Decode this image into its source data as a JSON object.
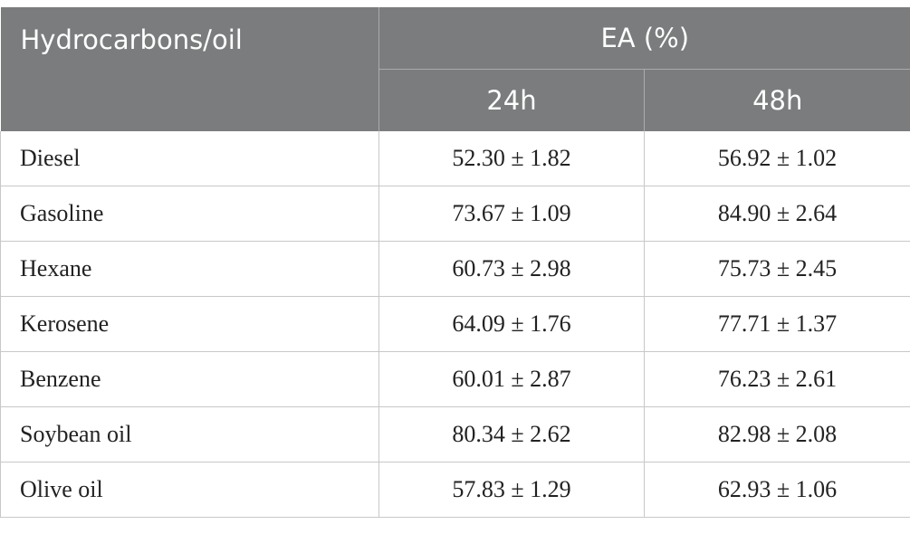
{
  "table": {
    "header": {
      "row_label": "Hydrocarbons/oil",
      "group_label": "EA (%)",
      "col_24h": "24h",
      "col_48h": "48h"
    },
    "rows": [
      {
        "name": "Diesel",
        "ea_24h": "52.30 ± 1.82",
        "ea_48h": "56.92 ± 1.02"
      },
      {
        "name": "Gasoline",
        "ea_24h": "73.67 ± 1.09",
        "ea_48h": "84.90 ± 2.64"
      },
      {
        "name": "Hexane",
        "ea_24h": "60.73 ± 2.98",
        "ea_48h": "75.73 ± 2.45"
      },
      {
        "name": "Kerosene",
        "ea_24h": "64.09 ± 1.76",
        "ea_48h": "77.71 ± 1.37"
      },
      {
        "name": "Benzene",
        "ea_24h": "60.01 ± 2.87",
        "ea_48h": "76.23 ± 2.61"
      },
      {
        "name": "Soybean oil",
        "ea_24h": "80.34 ± 2.62",
        "ea_48h": "82.98 ± 2.08"
      },
      {
        "name": "Olive oil",
        "ea_24h": "57.83 ± 1.29",
        "ea_48h": "62.93 ± 1.06"
      }
    ]
  }
}
